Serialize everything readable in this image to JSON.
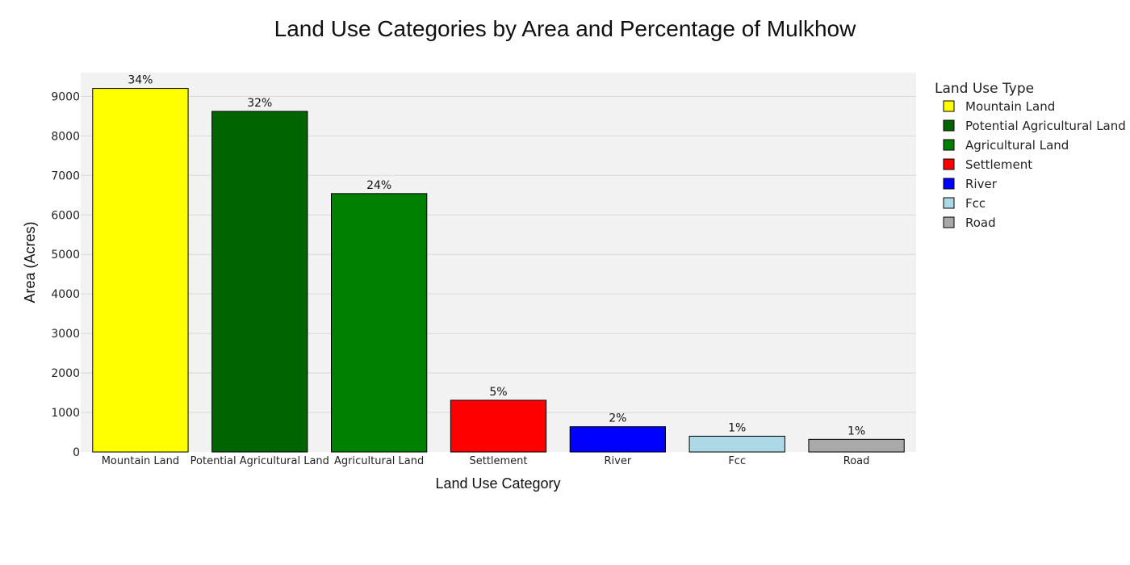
{
  "chart_data": {
    "type": "bar",
    "title": "Land Use Categories by Area and Percentage of Mulkhow",
    "xlabel": "Land Use Category",
    "ylabel": "Area (Acres)",
    "ylim": [
      0,
      9600
    ],
    "yticks": [
      "0",
      "1000",
      "2000",
      "3000",
      "4000",
      "5000",
      "6000",
      "7000",
      "8000",
      "9000"
    ],
    "grid": true,
    "legend_title": "Land Use Type",
    "legend_position": "right",
    "categories": [
      "Mountain Land",
      "Potential Agricultural Land",
      "Agricultural Land",
      "Settlement",
      "River",
      "Fcc",
      "Road"
    ],
    "values": [
      9200,
      8620,
      6540,
      1310,
      640,
      400,
      320
    ],
    "labels": [
      "34%",
      "32%",
      "24%",
      "5%",
      "2%",
      "1%",
      "1%"
    ],
    "colors": [
      "#ffff00",
      "#006400",
      "#008000",
      "#ff0000",
      "#0000ff",
      "#add8e6",
      "#a9a9a9"
    ]
  }
}
